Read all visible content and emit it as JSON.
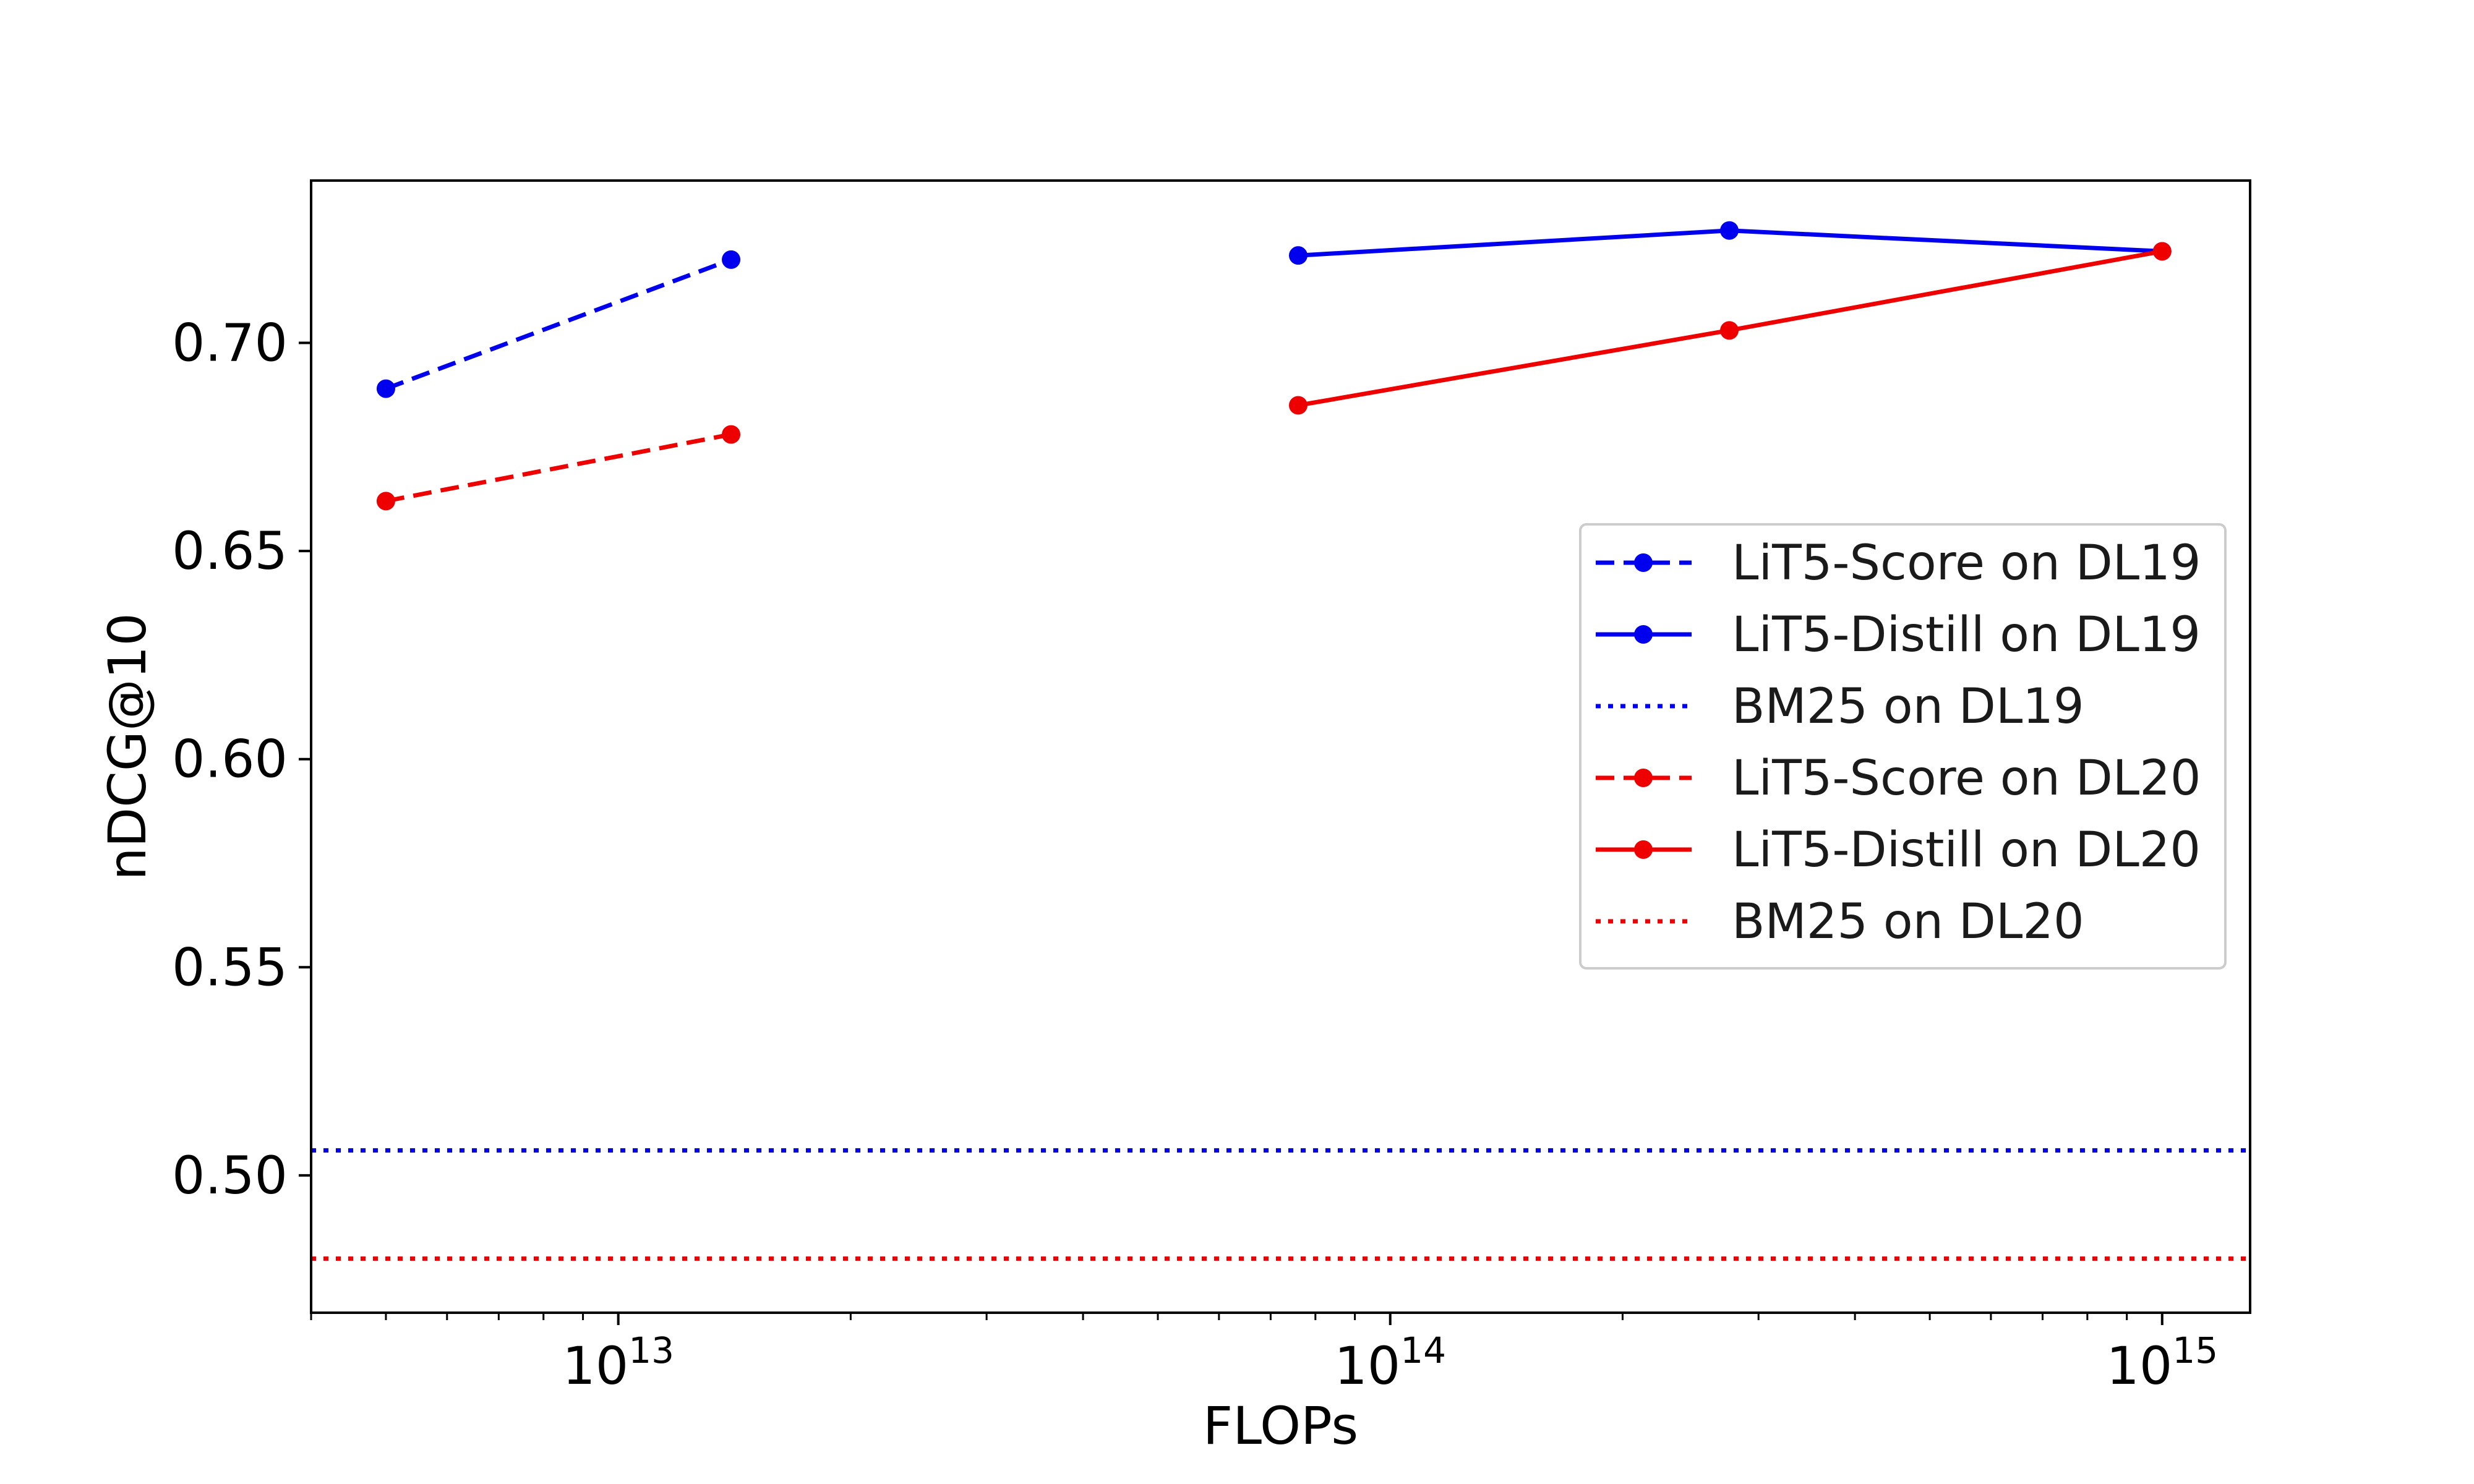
{
  "chart_data": {
    "type": "line",
    "title": "",
    "xlabel": "FLOPs",
    "ylabel": "nDCG@10",
    "xscale": "log",
    "xlim": [
      4000000000000.0,
      1300000000000000.0
    ],
    "ylim": [
      0.467,
      0.739
    ],
    "grid": false,
    "legend_position": "center-right",
    "x_ticks": [
      {
        "base": "10",
        "exp": "13",
        "value": 10000000000000.0
      },
      {
        "base": "10",
        "exp": "14",
        "value": 100000000000000.0
      },
      {
        "base": "10",
        "exp": "15",
        "value": 1000000000000000.0
      }
    ],
    "y_ticks": [
      {
        "label": "0.50",
        "value": 0.5
      },
      {
        "label": "0.55",
        "value": 0.55
      },
      {
        "label": "0.60",
        "value": 0.6
      },
      {
        "label": "0.65",
        "value": 0.65
      },
      {
        "label": "0.70",
        "value": 0.7
      }
    ],
    "series": [
      {
        "name": "LiT5-Score on DL19",
        "color": "#0000ee",
        "style": "dashed",
        "marker": true,
        "x": [
          5000000000000.0,
          14000000000000.0
        ],
        "y": [
          0.689,
          0.72
        ]
      },
      {
        "name": "LiT5-Distill on DL19",
        "color": "#0000ee",
        "style": "solid",
        "marker": true,
        "x": [
          76000000000000.0,
          275000000000000.0,
          1000000000000000.0
        ],
        "y": [
          0.721,
          0.727,
          0.722
        ]
      },
      {
        "name": "BM25 on DL19",
        "color": "#0000ee",
        "style": "dotted",
        "marker": false,
        "hline": 0.506
      },
      {
        "name": "LiT5-Score on DL20",
        "color": "#ee0000",
        "style": "dashed",
        "marker": true,
        "x": [
          5000000000000.0,
          14000000000000.0
        ],
        "y": [
          0.662,
          0.678
        ]
      },
      {
        "name": "LiT5-Distill on DL20",
        "color": "#ee0000",
        "style": "solid",
        "marker": true,
        "x": [
          76000000000000.0,
          275000000000000.0,
          1000000000000000.0
        ],
        "y": [
          0.685,
          0.703,
          0.722
        ]
      },
      {
        "name": "BM25 on DL20",
        "color": "#ee0000",
        "style": "dotted",
        "marker": false,
        "hline": 0.48
      }
    ]
  }
}
